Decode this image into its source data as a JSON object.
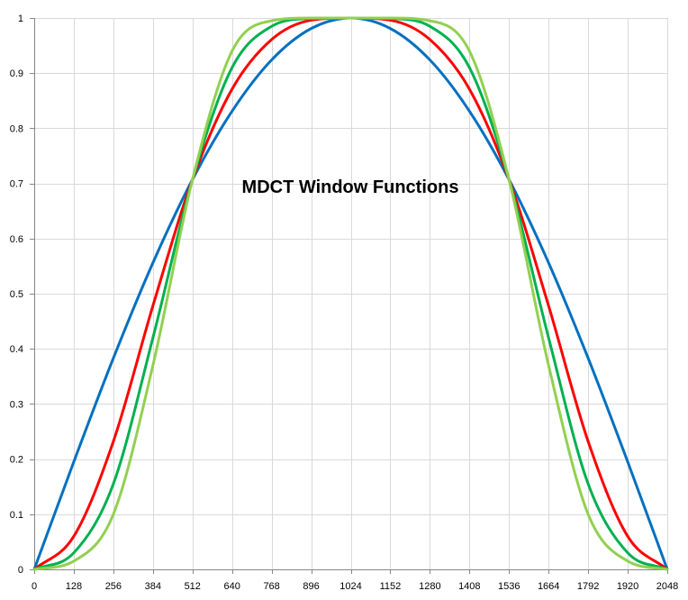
{
  "chart_data": {
    "type": "line",
    "title": "MDCT Window Functions",
    "xlabel": "",
    "ylabel": "",
    "xlim": [
      0,
      2048
    ],
    "ylim": [
      0,
      1
    ],
    "x_ticks": [
      0,
      128,
      256,
      384,
      512,
      640,
      768,
      896,
      1024,
      1152,
      1280,
      1408,
      1536,
      1664,
      1792,
      1920,
      2048
    ],
    "x_tick_labels": [
      "0",
      "128",
      "256",
      "384",
      "512",
      "640",
      "768",
      "896",
      "1024",
      "1152",
      "1280",
      "1408",
      "1536",
      "1664",
      "1792",
      "1920",
      "2048"
    ],
    "y_ticks": [
      0,
      0.1,
      0.2,
      0.3,
      0.4,
      0.5,
      0.6,
      0.7,
      0.8,
      0.9,
      1
    ],
    "y_tick_labels": [
      "0",
      "0.1",
      "0.2",
      "0.3",
      "0.4",
      "0.5",
      "0.6",
      "0.7",
      "0.8",
      "0.9",
      "1"
    ],
    "grid": true,
    "legend": "none",
    "x": [
      0,
      128,
      256,
      384,
      512,
      640,
      768,
      896,
      1024,
      1152,
      1280,
      1408,
      1536,
      1664,
      1792,
      1920,
      2048
    ],
    "series": [
      {
        "color": "#0070c0",
        "values": [
          0.0,
          0.195,
          0.383,
          0.556,
          0.707,
          0.831,
          0.924,
          0.981,
          1.0,
          0.981,
          0.924,
          0.831,
          0.707,
          0.556,
          0.383,
          0.195,
          0.0
        ]
      },
      {
        "color": "#ff0000",
        "values": [
          0.0,
          0.06,
          0.232,
          0.478,
          0.707,
          0.871,
          0.961,
          0.996,
          1.0,
          0.996,
          0.961,
          0.871,
          0.707,
          0.478,
          0.232,
          0.06,
          0.0
        ]
      },
      {
        "color": "#00b050",
        "values": [
          0.0,
          0.03,
          0.155,
          0.42,
          0.707,
          0.91,
          0.985,
          0.999,
          1.0,
          0.999,
          0.985,
          0.91,
          0.707,
          0.42,
          0.155,
          0.03,
          0.0
        ]
      },
      {
        "color": "#92d050",
        "values": [
          0.0,
          0.015,
          0.1,
          0.37,
          0.707,
          0.94,
          0.995,
          1.0,
          1.0,
          1.0,
          0.995,
          0.94,
          0.707,
          0.37,
          0.1,
          0.015,
          0.0
        ]
      }
    ]
  }
}
